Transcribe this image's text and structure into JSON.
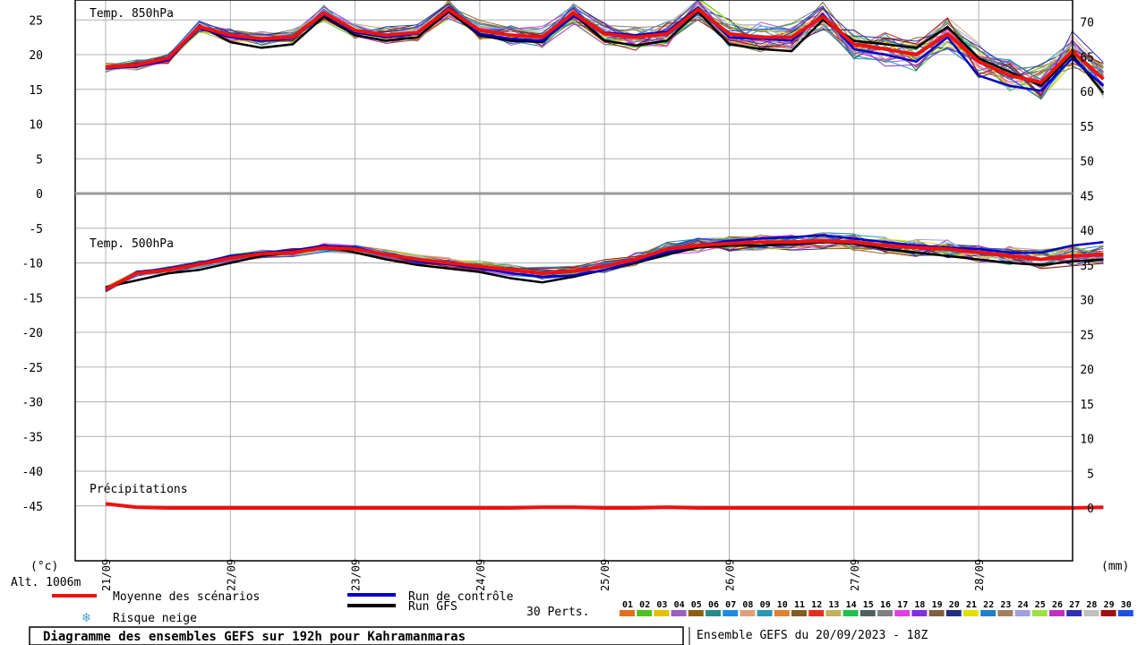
{
  "title": "Diagramme des ensembles GEFS sur 192h pour Kahramanmaras",
  "subtitle": "Ensemble GEFS du 20/09/2023 - 18Z",
  "unit_left": "(°c)",
  "unit_right": "(mm)",
  "altitude": "Alt. 1006m",
  "panel_labels": {
    "t850": "Temp. 850hPa",
    "t500": "Temp. 500hPa",
    "precip": "Précipitations"
  },
  "legend": {
    "mean": "Moyenne des scénarios",
    "control": "Run de contrôle",
    "gfs": "Run GFS",
    "snow": "Risque neige",
    "perts": "30 Perts."
  },
  "colors": {
    "mean": "#ee1111",
    "control": "#0000cc",
    "gfs": "#000000",
    "grid": "#b0b0b0",
    "snow": "#4a9ad4"
  },
  "pert_labels": [
    "01",
    "02",
    "03",
    "04",
    "05",
    "06",
    "07",
    "08",
    "09",
    "10",
    "11",
    "12",
    "13",
    "14",
    "15",
    "16",
    "17",
    "18",
    "19",
    "20",
    "21",
    "22",
    "23",
    "24",
    "25",
    "26",
    "27",
    "28",
    "29",
    "30"
  ],
  "pert_colors": [
    "#e07020",
    "#50c020",
    "#e0c000",
    "#9a60c0",
    "#8a6010",
    "#2a8a8a",
    "#208ae0",
    "#e0a080",
    "#2a9ab0",
    "#e08030",
    "#806020",
    "#e03020",
    "#c0b060",
    "#20c050",
    "#506060",
    "#808080",
    "#e040e0",
    "#8030e0",
    "#806040",
    "#203080",
    "#e0e000",
    "#2080c0",
    "#a08060",
    "#a0a0e0",
    "#a0e040",
    "#c030c0",
    "#3030b0",
    "#c0c0c0",
    "#a01010",
    "#2050e0"
  ],
  "chart_data": {
    "type": "line",
    "title": "Diagramme des ensembles GEFS sur 192h pour Kahramanmaras",
    "x": [
      0,
      0.25,
      0.5,
      0.75,
      1,
      1.25,
      1.5,
      1.75,
      2,
      2.25,
      2.5,
      2.75,
      3,
      3.25,
      3.5,
      3.75,
      4,
      4.25,
      4.5,
      4.75,
      5,
      5.25,
      5.5,
      5.75,
      6,
      6.25,
      6.5,
      6.75,
      7,
      7.25,
      7.5,
      7.75,
      8
    ],
    "x_unit": "days from 20/09 18Z",
    "date_ticks": [
      "21/09",
      "22/09",
      "23/09",
      "24/09",
      "25/09",
      "26/09",
      "27/09",
      "28/09"
    ],
    "ylim_left": [
      -50,
      26
    ],
    "yticks_left": [
      25,
      20,
      15,
      10,
      5,
      0,
      -5,
      -10,
      -15,
      -20,
      -25,
      -30,
      -35,
      -40,
      -45
    ],
    "yticks_right": [
      70,
      65,
      60,
      55,
      50,
      45,
      40,
      35,
      30,
      25,
      20,
      15,
      10,
      5,
      0
    ],
    "ylabel_left": "(°c)",
    "ylabel_right": "(mm)",
    "series": [
      {
        "name": "Moyenne des scénarios - Temp. 850hPa",
        "values": [
          18.2,
          18.5,
          19.5,
          24.0,
          22.8,
          22.3,
          22.5,
          26.0,
          23.5,
          22.8,
          23.2,
          26.5,
          23.5,
          22.8,
          22.5,
          26.0,
          23.0,
          22.5,
          23.0,
          26.5,
          23.0,
          22.5,
          22.5,
          25.5,
          21.5,
          20.8,
          20.0,
          23.0,
          19.0,
          17.0,
          16.0,
          20.5,
          16.5
        ]
      },
      {
        "name": "Run de contrôle - Temp. 850hPa",
        "values": [
          18.0,
          18.3,
          19.2,
          23.8,
          22.5,
          22.0,
          22.3,
          25.8,
          23.2,
          22.5,
          23.0,
          26.8,
          23.0,
          22.3,
          22.0,
          25.5,
          23.2,
          22.8,
          23.3,
          26.8,
          22.5,
          22.3,
          22.0,
          25.8,
          20.8,
          20.0,
          19.0,
          22.5,
          17.0,
          15.5,
          14.8,
          19.5,
          15.5
        ]
      },
      {
        "name": "Run GFS - Temp. 850hPa",
        "values": [
          18.1,
          18.4,
          19.3,
          24.2,
          21.8,
          21.0,
          21.5,
          25.5,
          22.8,
          22.0,
          22.5,
          26.2,
          22.8,
          22.0,
          21.8,
          25.8,
          22.0,
          21.3,
          22.0,
          26.2,
          21.5,
          20.8,
          20.5,
          25.0,
          22.0,
          21.5,
          21.0,
          24.0,
          19.5,
          17.5,
          15.5,
          20.0,
          14.5
        ]
      },
      {
        "name": "Moyenne des scénarios - Temp. 500hPa",
        "values": [
          -13.8,
          -11.5,
          -11.0,
          -10.2,
          -9.3,
          -8.7,
          -8.5,
          -7.8,
          -8.0,
          -8.8,
          -9.5,
          -10.0,
          -10.5,
          -11.0,
          -11.5,
          -11.2,
          -10.5,
          -9.5,
          -8.0,
          -7.5,
          -7.2,
          -7.0,
          -7.0,
          -6.8,
          -7.0,
          -7.5,
          -7.8,
          -8.0,
          -8.5,
          -9.0,
          -9.5,
          -9.0,
          -8.8
        ]
      },
      {
        "name": "Run de contrôle - Temp. 500hPa",
        "values": [
          -14.0,
          -11.3,
          -10.8,
          -10.0,
          -9.0,
          -8.5,
          -8.2,
          -7.5,
          -7.8,
          -8.8,
          -9.8,
          -10.2,
          -10.8,
          -11.5,
          -12.0,
          -11.8,
          -11.0,
          -9.8,
          -8.5,
          -7.5,
          -6.8,
          -6.5,
          -6.3,
          -6.0,
          -6.5,
          -7.0,
          -7.5,
          -7.8,
          -8.0,
          -8.5,
          -8.5,
          -7.5,
          -7.0
        ]
      },
      {
        "name": "Run GFS - Temp. 500hPa",
        "values": [
          -13.5,
          -12.5,
          -11.5,
          -11.0,
          -10.0,
          -9.0,
          -8.5,
          -7.5,
          -8.5,
          -9.5,
          -10.3,
          -10.8,
          -11.3,
          -12.2,
          -12.8,
          -12.0,
          -11.0,
          -10.0,
          -8.8,
          -7.8,
          -7.5,
          -7.5,
          -7.3,
          -7.0,
          -7.2,
          -8.0,
          -8.5,
          -9.0,
          -9.5,
          -10.0,
          -10.3,
          -9.8,
          -9.5
        ]
      },
      {
        "name": "Moyenne des scénarios - Précipitations (mm)",
        "values": [
          0.6,
          0.1,
          0,
          0,
          0,
          0,
          0,
          0,
          0,
          0,
          0,
          0,
          0,
          0,
          0.1,
          0.1,
          0,
          0,
          0.1,
          0,
          0,
          0,
          0,
          0,
          0,
          0,
          0,
          0,
          0,
          0,
          0,
          0,
          0.1
        ]
      }
    ]
  }
}
